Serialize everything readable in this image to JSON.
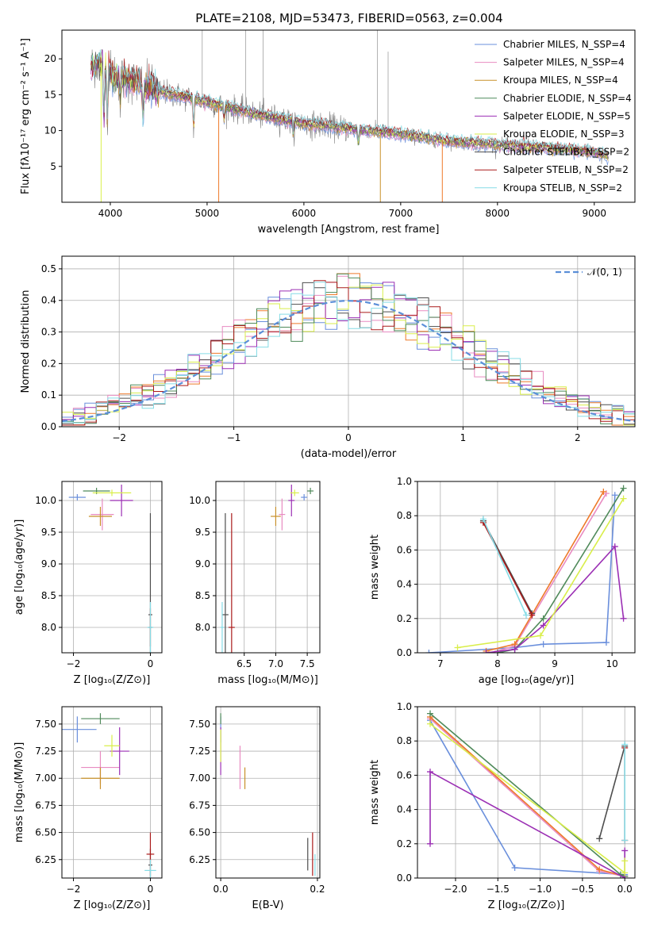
{
  "figure": {
    "title": "PLATE=2108, MJD=53473, FIBERID=0563, z=0.004",
    "colors": {
      "Chabrier MILES": "#6a8fdc",
      "Salpeter MILES": "#e88bc1",
      "Kroupa MILES": "#c8902a",
      "Chabrier ELODIE": "#4f8a5a",
      "Salpeter ELODIE": "#9b2fb4",
      "Kroupa ELODIE": "#d9ee4a",
      "Chabrier STELIB": "#4d4d4d",
      "Salpeter STELIB": "#aa1a1a",
      "Kroupa STELIB": "#86dce6",
      "orange": "#ee7a2a",
      "grey_data": "#808080",
      "normal_curve": "#5b8fd8",
      "grid": "#b0b0b0"
    }
  },
  "chart_data": [
    {
      "id": "spectrum",
      "type": "line",
      "title": "PLATE=2108, MJD=53473, FIBERID=0563, z=0.004",
      "xlabel": "wavelength [Angstrom, rest frame]",
      "ylabel": "Flux [fλ10⁻¹⁷ erg cm⁻² s⁻¹ A⁻¹]",
      "xlim": [
        3500,
        9420
      ],
      "ylim": [
        0,
        24
      ],
      "xticks": [
        4000,
        5000,
        6000,
        7000,
        8000,
        9000
      ],
      "yticks": [
        5,
        10,
        15,
        20
      ],
      "grid": false,
      "legend_position": "top-right",
      "data_range": [
        3800,
        9150
      ],
      "continuum": {
        "x": [
          3800,
          3900,
          4000,
          4200,
          4500,
          5000,
          5500,
          6000,
          6500,
          7000,
          7500,
          8000,
          8500,
          9000,
          9150
        ],
        "y": [
          19,
          19.5,
          18,
          17,
          15.5,
          14,
          12.3,
          11,
          10.2,
          9.5,
          8.5,
          8.0,
          7.6,
          7.0,
          6.5
        ]
      },
      "series": [
        {
          "name": "Chabrier MILES, N_SSP=4"
        },
        {
          "name": "Salpeter MILES, N_SSP=4"
        },
        {
          "name": "Kroupa MILES, N_SSP=4"
        },
        {
          "name": "Chabrier ELODIE, N_SSP=4"
        },
        {
          "name": "Salpeter ELODIE, N_SSP=5"
        },
        {
          "name": "Kroupa ELODIE, N_SSP=3"
        },
        {
          "name": "Chabrier STELIB, N_SSP=2"
        },
        {
          "name": "Salpeter STELIB, N_SSP=2"
        },
        {
          "name": "Kroupa STELIB, N_SSP=2"
        }
      ]
    },
    {
      "id": "residuals",
      "type": "histogram",
      "xlabel": "(data-model)/error",
      "ylabel": "Normed distribution",
      "xlim": [
        -2.5,
        2.5
      ],
      "ylim": [
        0,
        0.54
      ],
      "xticks": [
        -2,
        -1,
        0,
        1,
        2
      ],
      "yticks": [
        0.0,
        0.1,
        0.2,
        0.3,
        0.4,
        0.5
      ],
      "grid": true,
      "legend_position": "top-right",
      "legend": "𝒩(0, 1)",
      "bin_width": 0.1
    },
    {
      "id": "age_vs_Z",
      "type": "scatter",
      "xlabel": "Z [log₁₀(Z/Z⊙)]",
      "ylabel": "age  [log₁₀(age/yr)]",
      "xlim": [
        -2.3,
        0.3
      ],
      "ylim": [
        7.6,
        10.3
      ],
      "xticks": [
        -2,
        0
      ],
      "yticks": [
        8.0,
        8.5,
        9.0,
        9.5,
        10.0
      ],
      "grid": true,
      "points": [
        {
          "s": "Chabrier MILES",
          "x": -1.9,
          "y": 10.05,
          "xerr": 0.22,
          "yerr": 0.05
        },
        {
          "s": "Salpeter MILES",
          "x": -1.25,
          "y": 9.78,
          "xerr": 0.3,
          "yerr": 0.25
        },
        {
          "s": "Kroupa MILES",
          "x": -1.3,
          "y": 9.75,
          "xerr": 0.3,
          "yerr": 0.15
        },
        {
          "s": "Chabrier ELODIE",
          "x": -1.4,
          "y": 10.15,
          "xerr": 0.35,
          "yerr": 0.05
        },
        {
          "s": "Salpeter ELODIE",
          "x": -0.75,
          "y": 10.0,
          "xerr": 0.3,
          "yerr": 0.25
        },
        {
          "s": "Kroupa ELODIE",
          "x": -1.0,
          "y": 10.12,
          "xerr": 0.5,
          "yerr": 0.05
        },
        {
          "s": "Chabrier STELIB",
          "x": 0.0,
          "y": 8.2,
          "xerr": 0.05,
          "yerr": 1.6
        },
        {
          "s": "Salpeter STELIB",
          "x": 0.0,
          "y": 8.0,
          "xerr": 0.05,
          "yerr": 0.3
        },
        {
          "s": "Kroupa STELIB",
          "x": 0.0,
          "y": 8.0,
          "xerr": 0.08,
          "yerr": 0.4
        }
      ]
    },
    {
      "id": "age_vs_mass",
      "type": "scatter",
      "xlabel": "mass [log₁₀(M/M⊙)]",
      "ylabel": "",
      "xlim": [
        6.05,
        7.7
      ],
      "ylim": [
        7.6,
        10.3
      ],
      "xticks": [
        6.5,
        7.0,
        7.5
      ],
      "yticks": [
        8.0,
        8.5,
        9.0,
        9.5,
        10.0
      ],
      "grid": true,
      "points": [
        {
          "s": "Chabrier MILES",
          "x": 7.45,
          "y": 10.05,
          "xerr": 0.05,
          "yerr": 0.05
        },
        {
          "s": "Salpeter MILES",
          "x": 7.1,
          "y": 9.78,
          "xerr": 0.05,
          "yerr": 0.25
        },
        {
          "s": "Kroupa MILES",
          "x": 7.0,
          "y": 9.75,
          "xerr": 0.08,
          "yerr": 0.15
        },
        {
          "s": "Chabrier ELODIE",
          "x": 7.55,
          "y": 10.15,
          "xerr": 0.05,
          "yerr": 0.05
        },
        {
          "s": "Salpeter ELODIE",
          "x": 7.25,
          "y": 10.0,
          "xerr": 0.05,
          "yerr": 0.25
        },
        {
          "s": "Kroupa ELODIE",
          "x": 7.3,
          "y": 10.12,
          "xerr": 0.07,
          "yerr": 0.05
        },
        {
          "s": "Chabrier STELIB",
          "x": 6.2,
          "y": 8.2,
          "xerr": 0.05,
          "yerr": 1.6
        },
        {
          "s": "Salpeter STELIB",
          "x": 6.3,
          "y": 8.0,
          "xerr": 0.05,
          "yerr": 1.8
        },
        {
          "s": "Kroupa STELIB",
          "x": 6.15,
          "y": 8.0,
          "xerr": 0.03,
          "yerr": 0.4
        }
      ]
    },
    {
      "id": "weight_vs_age",
      "type": "line",
      "xlabel": "age  [log₁₀(age/yr)]",
      "ylabel": "mass weight",
      "xlim": [
        6.6,
        10.4
      ],
      "ylim": [
        0,
        1.0
      ],
      "xticks": [
        7,
        8,
        9,
        10
      ],
      "yticks": [
        0.0,
        0.2,
        0.4,
        0.6,
        0.8,
        1.0
      ],
      "grid": true,
      "series": [
        {
          "s": "Chabrier MILES",
          "x": [
            6.8,
            8.3,
            8.8,
            9.9,
            10.05
          ],
          "y": [
            0.0,
            0.03,
            0.05,
            0.06,
            0.92
          ]
        },
        {
          "s": "Salpeter MILES",
          "x": [
            8.0,
            8.3,
            9.9
          ],
          "y": [
            0.01,
            0.04,
            0.93
          ]
        },
        {
          "s": "Kroupa MILES",
          "x": [
            7.8,
            8.3,
            9.85
          ],
          "y": [
            0.01,
            0.05,
            0.94
          ]
        },
        {
          "s": "Chabrier ELODIE",
          "x": [
            8.0,
            8.3,
            8.8,
            10.2
          ],
          "y": [
            0.0,
            0.02,
            0.2,
            0.96
          ]
        },
        {
          "s": "Salpeter ELODIE",
          "x": [
            7.8,
            8.3,
            8.8,
            10.05,
            10.2
          ],
          "y": [
            0.0,
            0.02,
            0.16,
            0.62,
            0.2
          ]
        },
        {
          "s": "Kroupa ELODIE",
          "x": [
            7.3,
            8.75,
            10.2
          ],
          "y": [
            0.03,
            0.1,
            0.9
          ]
        },
        {
          "s": "Chabrier STELIB",
          "x": [
            7.75,
            8.6
          ],
          "y": [
            0.77,
            0.23
          ]
        },
        {
          "s": "Salpeter STELIB",
          "x": [
            7.75,
            8.6
          ],
          "y": [
            0.76,
            0.22
          ]
        },
        {
          "s": "Kroupa STELIB",
          "x": [
            7.75,
            8.5
          ],
          "y": [
            0.78,
            0.22
          ]
        }
      ]
    },
    {
      "id": "mass_vs_Z",
      "type": "scatter",
      "xlabel": "Z [log₁₀(Z/Z⊙)]",
      "ylabel": "mass [log₁₀(M/M⊙)]",
      "xlim": [
        -2.3,
        0.3
      ],
      "ylim": [
        6.08,
        7.66
      ],
      "xticks": [
        -2,
        0
      ],
      "yticks": [
        6.25,
        6.5,
        6.75,
        7.0,
        7.25,
        7.5
      ],
      "grid": true,
      "points": [
        {
          "s": "Chabrier MILES",
          "x": -1.9,
          "y": 7.45,
          "xerr": 0.5,
          "yerr": 0.12
        },
        {
          "s": "Salpeter MILES",
          "x": -1.3,
          "y": 7.1,
          "xerr": 0.5,
          "yerr": 0.15
        },
        {
          "s": "Kroupa MILES",
          "x": -1.3,
          "y": 7.0,
          "xerr": 0.5,
          "yerr": 0.1
        },
        {
          "s": "Chabrier ELODIE",
          "x": -1.3,
          "y": 7.55,
          "xerr": 0.5,
          "yerr": 0.05
        },
        {
          "s": "Salpeter ELODIE",
          "x": -0.8,
          "y": 7.25,
          "xerr": 0.25,
          "yerr": 0.22
        },
        {
          "s": "Kroupa ELODIE",
          "x": -1.0,
          "y": 7.3,
          "xerr": 0.2,
          "yerr": 0.1
        },
        {
          "s": "Chabrier STELIB",
          "x": 0.0,
          "y": 6.2,
          "xerr": 0.05,
          "yerr": 0.15
        },
        {
          "s": "Salpeter STELIB",
          "x": 0.0,
          "y": 6.3,
          "xerr": 0.1,
          "yerr": 0.2
        },
        {
          "s": "Kroupa STELIB",
          "x": 0.0,
          "y": 6.15,
          "xerr": 0.15,
          "yerr": 0.1
        }
      ]
    },
    {
      "id": "mass_vs_ebv",
      "type": "scatter",
      "xlabel": "E(B-V)",
      "ylabel": "",
      "xlim": [
        -0.01,
        0.205
      ],
      "ylim": [
        6.08,
        7.66
      ],
      "xticks": [
        0.0,
        0.2
      ],
      "yticks": [
        6.25,
        6.5,
        6.75,
        7.0,
        7.25,
        7.5
      ],
      "grid": true,
      "points": [
        {
          "s": "Chabrier MILES",
          "x": 0.0,
          "y": 7.45,
          "xerr": 0.0,
          "yerr": 0.12
        },
        {
          "s": "Salpeter MILES",
          "x": 0.04,
          "y": 7.1,
          "xerr": 0.0,
          "yerr": 0.2
        },
        {
          "s": "Kroupa MILES",
          "x": 0.05,
          "y": 7.0,
          "xerr": 0.0,
          "yerr": 0.1
        },
        {
          "s": "Chabrier ELODIE",
          "x": 0.0,
          "y": 7.55,
          "xerr": 0.0,
          "yerr": 0.05
        },
        {
          "s": "Salpeter ELODIE",
          "x": 0.0,
          "y": 7.25,
          "xerr": 0.0,
          "yerr": 0.22
        },
        {
          "s": "Kroupa ELODIE",
          "x": 0.0,
          "y": 7.3,
          "xerr": 0.0,
          "yerr": 0.15
        },
        {
          "s": "Chabrier STELIB",
          "x": 0.18,
          "y": 6.3,
          "xerr": 0.0,
          "yerr": 0.15
        },
        {
          "s": "Salpeter STELIB",
          "x": 0.19,
          "y": 6.3,
          "xerr": 0.0,
          "yerr": 0.2
        },
        {
          "s": "Kroupa STELIB",
          "x": 0.195,
          "y": 6.2,
          "xerr": 0.0,
          "yerr": 0.1
        }
      ]
    },
    {
      "id": "weight_vs_Z",
      "type": "line",
      "xlabel": "Z [log₁₀(Z/Z⊙)]",
      "ylabel": "mass weight",
      "xlim": [
        -2.45,
        0.12
      ],
      "ylim": [
        0,
        1.0
      ],
      "xticks": [
        -2.0,
        -1.5,
        -1.0,
        -0.5,
        0.0
      ],
      "yticks": [
        0.0,
        0.2,
        0.4,
        0.6,
        0.8,
        1.0
      ],
      "grid": true,
      "series": [
        {
          "s": "Chabrier MILES",
          "x": [
            -2.3,
            -1.3,
            0.0,
            0.0
          ],
          "y": [
            0.92,
            0.06,
            0.02,
            0.01
          ]
        },
        {
          "s": "Salpeter MILES",
          "x": [
            -2.3,
            -0.3,
            0.0
          ],
          "y": [
            0.93,
            0.04,
            0.01
          ]
        },
        {
          "s": "Kroupa MILES",
          "x": [
            -2.3,
            -0.3,
            0.0
          ],
          "y": [
            0.94,
            0.05,
            0.01
          ]
        },
        {
          "s": "Chabrier ELODIE",
          "x": [
            -2.3,
            -0.05,
            0.0
          ],
          "y": [
            0.96,
            0.02,
            0.01
          ]
        },
        {
          "s": "Salpeter ELODIE",
          "x": [
            -2.3,
            -2.3,
            0.0,
            0.0
          ],
          "y": [
            0.2,
            0.62,
            0.0,
            0.16
          ]
        },
        {
          "s": "Kroupa ELODIE",
          "x": [
            -2.3,
            0.0,
            0.0
          ],
          "y": [
            0.9,
            0.03,
            0.1
          ]
        },
        {
          "s": "Chabrier STELIB",
          "x": [
            -0.3,
            0.0
          ],
          "y": [
            0.23,
            0.77
          ]
        },
        {
          "s": "Salpeter STELIB",
          "x": [
            0.0,
            0.0
          ],
          "y": [
            0.22,
            0.76
          ]
        },
        {
          "s": "Kroupa STELIB",
          "x": [
            0.0,
            0.0
          ],
          "y": [
            0.22,
            0.78
          ]
        }
      ]
    }
  ]
}
